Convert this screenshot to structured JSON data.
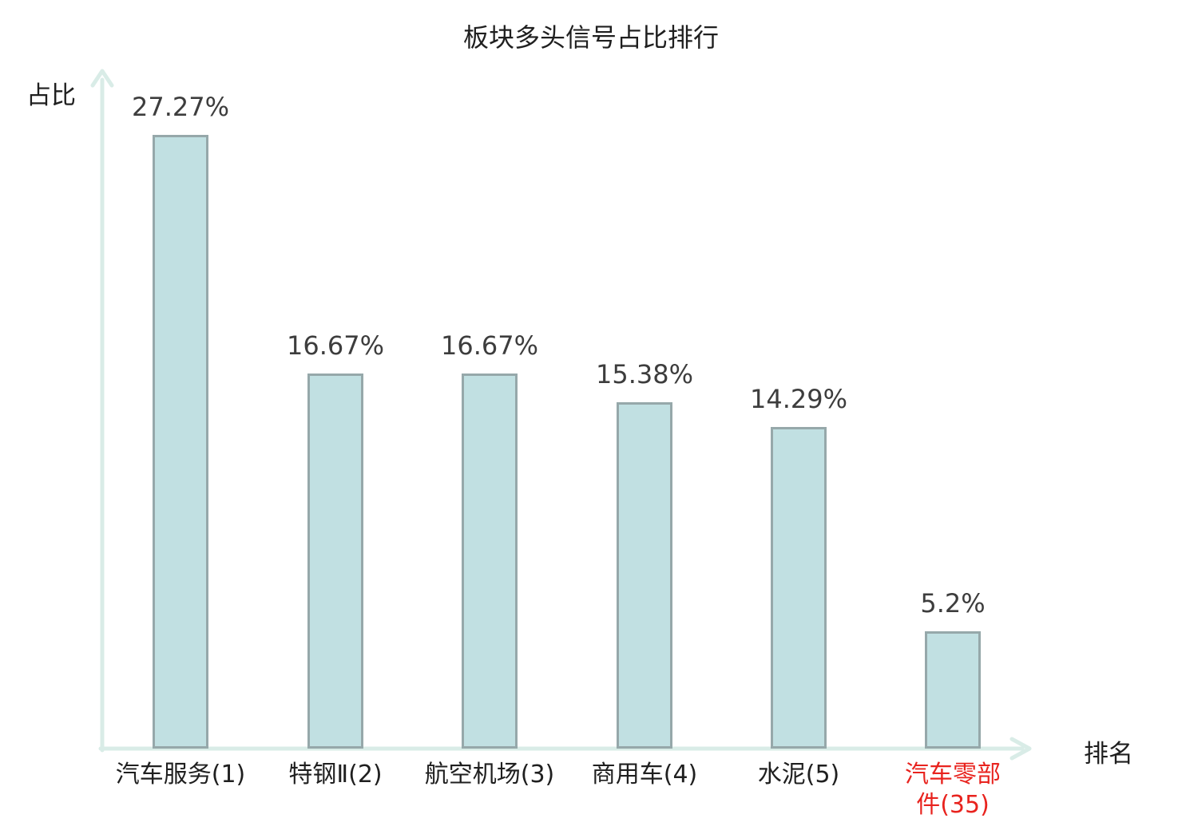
{
  "title": "板块多头信号占比排行",
  "y_axis_label": "占比",
  "x_axis_label": "排名",
  "colors": {
    "bar_fill": "#c1e0e2",
    "bar_border": "#96a8aa",
    "axis": "#d9ece7",
    "text": "#1f1f1f",
    "value_text": "#3d3d3d",
    "highlight": "#e8231e"
  },
  "chart_data": {
    "type": "bar",
    "title": "板块多头信号占比排行",
    "xlabel": "排名",
    "ylabel": "占比",
    "categories": [
      "汽车服务(1)",
      "特钢Ⅱ(2)",
      "航空机场(3)",
      "商用车(4)",
      "水泥(5)",
      "汽车零部件(35)"
    ],
    "values": [
      27.27,
      16.67,
      16.67,
      15.38,
      14.29,
      5.2
    ],
    "value_labels": [
      "27.27%",
      "16.67%",
      "16.67%",
      "15.38%",
      "14.29%",
      "5.2%"
    ],
    "highlight_index": 5,
    "ylim": [
      0,
      30
    ],
    "grid": false,
    "legend": "none",
    "bar_color": "#c1e0e2",
    "highlight_label_color": "#e8231e"
  }
}
